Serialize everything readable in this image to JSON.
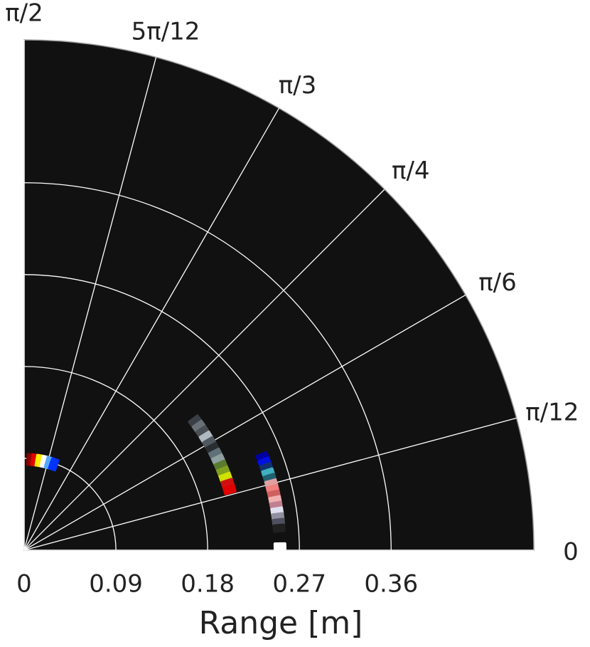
{
  "chart_data": {
    "type": "polar-scatter",
    "x_label": "Range [m]",
    "rlim": [
      0,
      0.5
    ],
    "rticks": [
      0,
      0.09,
      0.18,
      0.27,
      0.36
    ],
    "thetalim": [
      0,
      1.5708
    ],
    "thetaticks": [
      {
        "value": 0,
        "label": "0"
      },
      {
        "value": 0.2618,
        "label": "π/12"
      },
      {
        "value": 0.5236,
        "label": "π/6"
      },
      {
        "value": 0.7854,
        "label": "π/4"
      },
      {
        "value": 1.0472,
        "label": "π/3"
      },
      {
        "value": 1.309,
        "label": "5π/12"
      },
      {
        "value": 1.5708,
        "label": "π/2"
      }
    ],
    "grid": true,
    "background": "#111111",
    "series": [
      {
        "theta": [
          1.5,
          1.45,
          1.4,
          1.34,
          1.29,
          1.24,
          0.646,
          0.616,
          0.586,
          0.556,
          0.526,
          0.496,
          0.466,
          0.436,
          0.406,
          0.376,
          0.346,
          0.316,
          0.286,
          0.372,
          0.35,
          0.328,
          0.306,
          0.284,
          0.262,
          0.24,
          0.218,
          0.196,
          0.174,
          0.152,
          0.13,
          0.108,
          0.086,
          0.014
        ],
        "values": [
          0.089,
          0.089,
          0.089,
          0.089,
          0.089,
          0.089,
          0.21,
          0.21,
          0.21,
          0.21,
          0.21,
          0.21,
          0.21,
          0.21,
          0.21,
          0.21,
          0.21,
          0.21,
          0.21,
          0.251,
          0.251,
          0.251,
          0.251,
          0.251,
          0.251,
          0.251,
          0.251,
          0.251,
          0.251,
          0.251,
          0.251,
          0.251,
          0.251,
          0.251
        ],
        "colors": [
          "#8b0000",
          "#e00000",
          "#ffee00",
          "#ffffff",
          "#55aaff",
          "#0033ff",
          "#3a3f45",
          "#6a7078",
          "#4a4f55",
          "#b0b8c0",
          "#505860",
          "#2a2e33",
          "#607078",
          "#90a0a0",
          "#5a7a30",
          "#80a020",
          "#d0e000",
          "#d01010",
          "#e00000",
          "#0000a0",
          "#0010e0",
          "#103070",
          "#40b0c0",
          "#206070",
          "#e0a0a0",
          "#f08080",
          "#d06060",
          "#f0b0b0",
          "#c08090",
          "#e0e0f0",
          "#9090a0",
          "#505060",
          "#202020",
          "#ffffff"
        ]
      }
    ]
  }
}
